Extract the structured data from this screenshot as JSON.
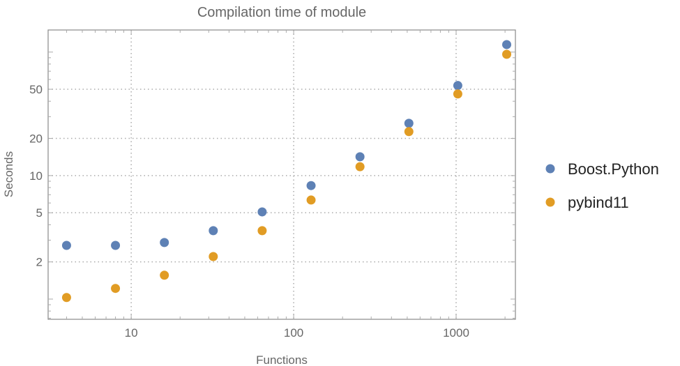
{
  "chart_data": {
    "type": "scatter",
    "title": "Compilation time of module",
    "xlabel": "Functions",
    "ylabel": "Seconds",
    "xscale": "log",
    "yscale": "log",
    "xlim": [
      3.08,
      2317
    ],
    "ylim": [
      0.686,
      151
    ],
    "xticks": [
      10,
      100,
      1000
    ],
    "xtick_labels": [
      "10",
      "100",
      "1000"
    ],
    "yticks": [
      2,
      5,
      10,
      20,
      50
    ],
    "ytick_labels": [
      "2",
      "5",
      "10",
      "20",
      "50"
    ],
    "grid": true,
    "legend_position": "right",
    "x": [
      4,
      8,
      16,
      32,
      64,
      128,
      256,
      512,
      1024,
      2048
    ],
    "series": [
      {
        "name": "Boost.Python",
        "color": "#5E81B5",
        "values": [
          2.72,
          2.72,
          2.87,
          3.58,
          5.08,
          8.3,
          14.2,
          26.5,
          53.6,
          115
        ]
      },
      {
        "name": "pybind11",
        "color": "#E19C24",
        "values": [
          1.03,
          1.22,
          1.56,
          2.21,
          3.58,
          6.34,
          11.8,
          22.7,
          45.8,
          96
        ]
      }
    ]
  }
}
